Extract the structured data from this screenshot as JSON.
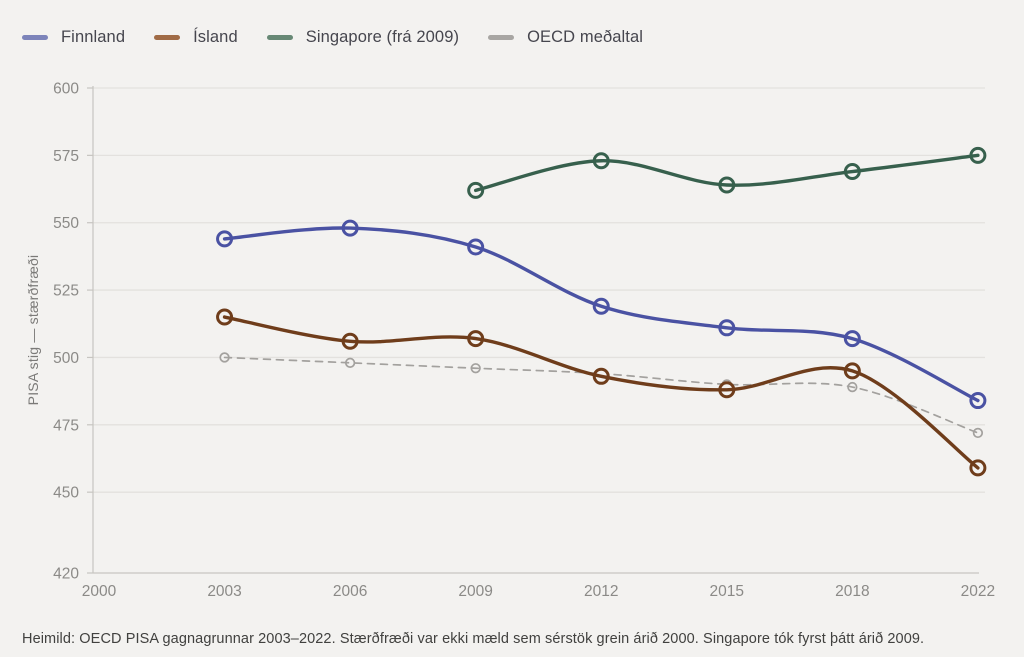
{
  "legend": {
    "items": [
      {
        "label": "Finnland",
        "swatch_color": "#7d84ba"
      },
      {
        "label": "Ísland",
        "swatch_color": "#a06b46"
      },
      {
        "label": "Singapore (frá 2009)",
        "swatch_color": "#678875"
      },
      {
        "label": "OECD meðaltal",
        "swatch_color": "#a8a6a3"
      }
    ]
  },
  "chart_data": {
    "type": "line",
    "title": "",
    "xlabel": "",
    "ylabel": "PISA stig — stærðfræði",
    "categories": [
      "2000",
      "2003",
      "2006",
      "2009",
      "2012",
      "2015",
      "2018",
      "2022"
    ],
    "ylim": [
      420,
      600
    ],
    "yticks": [
      600,
      575,
      550,
      525,
      500,
      475,
      450,
      420
    ],
    "grid": true,
    "legend_position": "top-left",
    "series": [
      {
        "name": "Finnland",
        "color": "#4a52a3",
        "style": "solid",
        "x": [
          "2003",
          "2006",
          "2009",
          "2012",
          "2015",
          "2018",
          "2022"
        ],
        "values": [
          544,
          548,
          541,
          519,
          511,
          507,
          484
        ]
      },
      {
        "name": "Ísland",
        "color": "#6f3d1b",
        "style": "solid",
        "x": [
          "2003",
          "2006",
          "2009",
          "2012",
          "2015",
          "2018",
          "2022"
        ],
        "values": [
          515,
          506,
          507,
          493,
          488,
          495,
          459
        ]
      },
      {
        "name": "Singapore (frá 2009)",
        "color": "#37604d",
        "style": "solid",
        "x": [
          "2009",
          "2012",
          "2015",
          "2018",
          "2022"
        ],
        "values": [
          562,
          573,
          564,
          569,
          575
        ]
      },
      {
        "name": "OECD meðaltal",
        "color": "#a3a19e",
        "style": "dashed",
        "x": [
          "2003",
          "2006",
          "2009",
          "2012",
          "2015",
          "2018",
          "2022"
        ],
        "values": [
          500,
          498,
          496,
          494,
          490,
          489,
          472
        ]
      }
    ]
  },
  "caption": {
    "text": "Heimild: OECD PISA gagnagrunnar 2003–2022. Stærðfræði var ekki mæld sem sérstök grein árið 2000. Singapore tók fyrst þátt árið 2009."
  },
  "colors": {
    "background": "#f3f2f0",
    "gridline": "#e3e1de",
    "axis_line": "#c7c5c1",
    "tick_label": "#8b8a87",
    "axis_label": "#7b7a78",
    "legend_text": "#46464e",
    "caption_text": "#41413f"
  }
}
